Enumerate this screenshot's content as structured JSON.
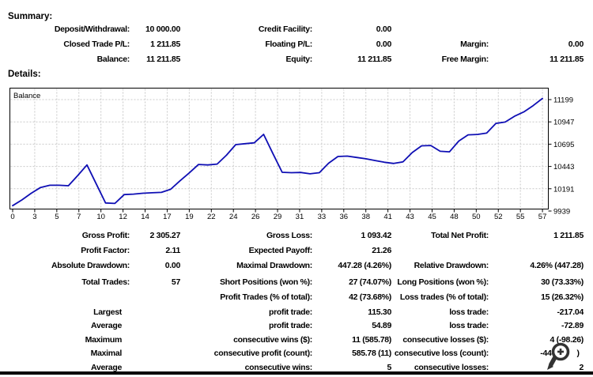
{
  "summary": {
    "title": "Summary:",
    "rows": [
      {
        "c1l": "Deposit/Withdrawal:",
        "c1v": "10 000.00",
        "c2l": "Credit Facility:",
        "c2v": "0.00",
        "c3l": "",
        "c3v": ""
      },
      {
        "c1l": "Closed Trade P/L:",
        "c1v": "1 211.85",
        "c2l": "Floating P/L:",
        "c2v": "0.00",
        "c3l": "Margin:",
        "c3v": "0.00"
      },
      {
        "c1l": "Balance:",
        "c1v": "11 211.85",
        "c2l": "Equity:",
        "c2v": "11 211.85",
        "c3l": "Free Margin:",
        "c3v": "11 211.85"
      }
    ]
  },
  "details": {
    "title": "Details:",
    "group1": [
      {
        "c1l": "Gross Profit:",
        "c1v": "2 305.27",
        "c2l": "Gross Loss:",
        "c2v": "1 093.42",
        "c3l": "Total Net Profit:",
        "c3v": "1 211.85"
      },
      {
        "c1l": "Profit Factor:",
        "c1v": "2.11",
        "c2l": "Expected Payoff:",
        "c2v": "21.26",
        "c3l": "",
        "c3v": ""
      },
      {
        "c1l": "Absolute Drawdown:",
        "c1v": "0.00",
        "c2l": "Maximal Drawdown:",
        "c2v": "447.28 (4.26%)",
        "c3l": "Relative Drawdown:",
        "c3v": "4.26% (447.28)"
      }
    ],
    "group2": [
      {
        "c1l": "Total Trades:",
        "c1v": "57",
        "c2l": "Short Positions (won %):",
        "c2v": "27 (74.07%)",
        "c3l": "Long Positions (won %):",
        "c3v": "30 (73.33%)"
      },
      {
        "c1l": "",
        "c1v": "",
        "c2l": "Profit Trades (% of total):",
        "c2v": "42 (73.68%)",
        "c3l": "Loss trades (% of total):",
        "c3v": "15 (26.32%)"
      }
    ],
    "group3": [
      {
        "c1l": "Largest",
        "c1v": "",
        "c2l": "profit trade:",
        "c2v": "115.30",
        "c3l": "loss trade:",
        "c3v": "-217.04"
      },
      {
        "c1l": "Average",
        "c1v": "",
        "c2l": "profit trade:",
        "c2v": "54.89",
        "c3l": "loss trade:",
        "c3v": "-72.89"
      },
      {
        "c1l": "Maximum",
        "c1v": "",
        "c2l": "consecutive wins ($):",
        "c2v": "11 (585.78)",
        "c3l": "consecutive losses ($):",
        "c3v": "4 (-98.26)"
      },
      {
        "c1l": "Maximal",
        "c1v": "",
        "c2l": "consecutive profit (count):",
        "c2v": "585.78 (11)",
        "c3l": "consecutive loss (count):",
        "c3v": "-447.2       )  "
      },
      {
        "c1l": "Average",
        "c1v": "",
        "c2l": "consecutive wins:",
        "c2v": "5",
        "c3l": "consecutive losses:",
        "c3v": "2"
      }
    ]
  },
  "overlay": {
    "magnifier_icon": "zoom-in-magnifier-cursor",
    "icon_color": "#333333"
  },
  "chart_data": {
    "type": "line",
    "title": "Balance",
    "legend_label": "Balance",
    "xlim": [
      0,
      57
    ],
    "x_step": 1,
    "x_tick_labels": [
      "0",
      "3",
      "5",
      "7",
      "10",
      "12",
      "14",
      "17",
      "19",
      "22",
      "24",
      "26",
      "29",
      "31",
      "33",
      "36",
      "38",
      "41",
      "43",
      "45",
      "48",
      "50",
      "52",
      "55",
      "57"
    ],
    "y_tick_labels": [
      "11199",
      "10947",
      "10695",
      "10443",
      "10191",
      "9939"
    ],
    "y_tick_values": [
      11199,
      10947,
      10695,
      10443,
      10191,
      9939
    ],
    "grid": "dashed",
    "grid_color": "#c9c9c9",
    "border_color": "#000000",
    "line_color": "#0f0fb4",
    "background": "#ffffff",
    "series": [
      {
        "name": "Balance",
        "values": [
          10000,
          10065,
          10140,
          10205,
          10230,
          10230,
          10225,
          10340,
          10460,
          10245,
          10030,
          10025,
          10125,
          10130,
          10140,
          10145,
          10150,
          10185,
          10280,
          10370,
          10465,
          10460,
          10470,
          10570,
          10690,
          10700,
          10710,
          10806,
          10590,
          10377,
          10372,
          10375,
          10360,
          10372,
          10480,
          10556,
          10560,
          10545,
          10530,
          10510,
          10490,
          10477,
          10495,
          10600,
          10676,
          10680,
          10615,
          10608,
          10730,
          10800,
          10805,
          10820,
          10930,
          10945,
          11010,
          11060,
          11130,
          11211.85
        ]
      }
    ]
  }
}
